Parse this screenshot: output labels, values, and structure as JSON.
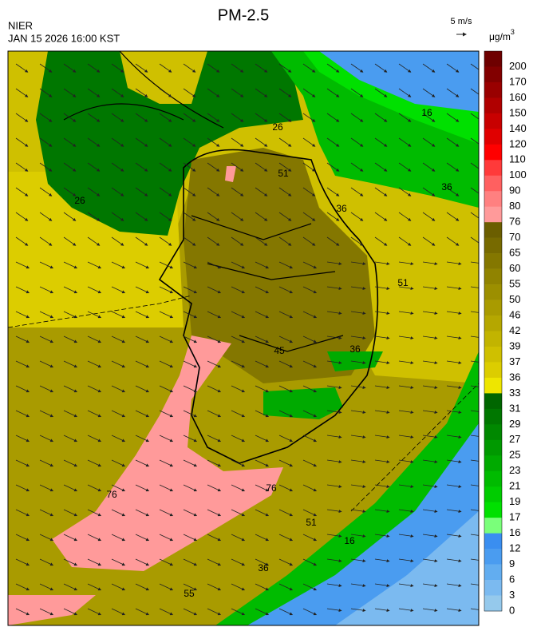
{
  "header": {
    "title": "PM-2.5",
    "source": "NIER",
    "datetime": "JAN 15 2026 16:00 KST",
    "wind_scale": "5 m/s"
  },
  "colorbar": {
    "unit": "μg/m",
    "unit_sup": "3",
    "labels": [
      "200",
      "170",
      "160",
      "150",
      "140",
      "120",
      "110",
      "100",
      "90",
      "80",
      "76",
      "70",
      "65",
      "60",
      "55",
      "50",
      "46",
      "42",
      "39",
      "37",
      "36",
      "33",
      "31",
      "29",
      "27",
      "25",
      "23",
      "21",
      "19",
      "17",
      "16",
      "12",
      "9",
      "6",
      "3",
      "0"
    ],
    "colors": [
      "#6e0000",
      "#820000",
      "#990000",
      "#b00000",
      "#c80000",
      "#e00000",
      "#ff0000",
      "#ff3a3a",
      "#ff6060",
      "#ff8080",
      "#ff9a9a",
      "#6b5e00",
      "#776a00",
      "#847700",
      "#908300",
      "#9c8f00",
      "#a99b00",
      "#b5a700",
      "#c2b400",
      "#cfc000",
      "#dccd00",
      "#eee600",
      "#006600",
      "#007700",
      "#008800",
      "#009900",
      "#00aa00",
      "#00bb00",
      "#00cc00",
      "#00e000",
      "#7aff7a",
      "#3a8ef0",
      "#4a9cf0",
      "#62adf0",
      "#7bbaf0",
      "#95c9ec"
    ]
  },
  "contour_labels": [
    "16",
    "26",
    "51",
    "36",
    "36",
    "26",
    "51",
    "36",
    "45",
    "76",
    "76",
    "51",
    "16",
    "36",
    "55"
  ]
}
